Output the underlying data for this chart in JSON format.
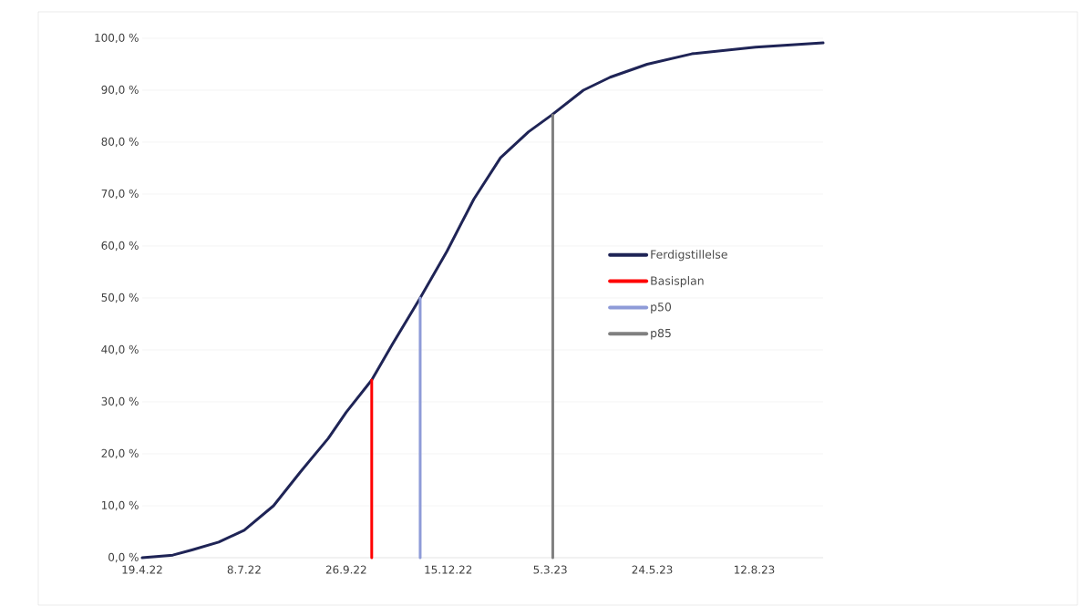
{
  "chart_data": {
    "type": "line",
    "xlim": [
      "2022-04-19",
      "2023-10-05"
    ],
    "ylim": [
      0,
      100
    ],
    "xticks": [
      {
        "value": "2022-04-19",
        "label": "19.4.22"
      },
      {
        "value": "2022-07-08",
        "label": "8.7.22"
      },
      {
        "value": "2022-09-26",
        "label": "26.9.22"
      },
      {
        "value": "2022-12-15",
        "label": "15.12.22"
      },
      {
        "value": "2023-03-05",
        "label": "5.3.23"
      },
      {
        "value": "2023-05-24",
        "label": "24.5.23"
      },
      {
        "value": "2023-08-12",
        "label": "12.8.23"
      }
    ],
    "yticks": [
      {
        "value": 0,
        "label": "0,0 %"
      },
      {
        "value": 10,
        "label": "10,0 %"
      },
      {
        "value": 20,
        "label": "20,0 %"
      },
      {
        "value": 30,
        "label": "30,0 %"
      },
      {
        "value": 40,
        "label": "40,0 %"
      },
      {
        "value": 50,
        "label": "50,0 %"
      },
      {
        "value": 60,
        "label": "60,0 %"
      },
      {
        "value": 70,
        "label": "70,0 %"
      },
      {
        "value": 80,
        "label": "80,0 %"
      },
      {
        "value": 90,
        "label": "90,0 %"
      },
      {
        "value": 100,
        "label": "100,0 %"
      }
    ],
    "grid": "y",
    "legend": "right",
    "marker": "none",
    "line_style": "solid",
    "series": [
      {
        "name": "Ferdigstillelse",
        "color": "#1f2456",
        "x": [
          "2022-04-19",
          "2022-05-13",
          "2022-05-28",
          "2022-06-18",
          "2022-07-08",
          "2022-07-31",
          "2022-08-21",
          "2022-09-12",
          "2022-09-26",
          "2022-10-16",
          "2022-11-01",
          "2022-11-23",
          "2022-12-14",
          "2023-01-04",
          "2023-01-25",
          "2023-02-16",
          "2023-03-06",
          "2023-03-31",
          "2023-04-21",
          "2023-05-20",
          "2023-06-24",
          "2023-08-13",
          "2023-10-05"
        ],
        "values": [
          0.0,
          0.5,
          1.5,
          3,
          5.3,
          10,
          16.5,
          23,
          28,
          34.2,
          41,
          50,
          59,
          69,
          77,
          82,
          85.2,
          90,
          92.5,
          95,
          97,
          98.3,
          99.1
        ]
      },
      {
        "name": "Basisplan",
        "color": "#ff0000",
        "x": [
          "2022-10-16",
          "2022-10-16"
        ],
        "values": [
          0,
          34.2
        ]
      },
      {
        "name": "p50",
        "color": "#8e9bd8",
        "x": [
          "2022-11-23",
          "2022-11-23"
        ],
        "values": [
          0,
          50
        ]
      },
      {
        "name": "p85",
        "color": "#808080",
        "x": [
          "2023-03-07",
          "2023-03-07"
        ],
        "values": [
          0,
          85.2
        ]
      }
    ]
  }
}
